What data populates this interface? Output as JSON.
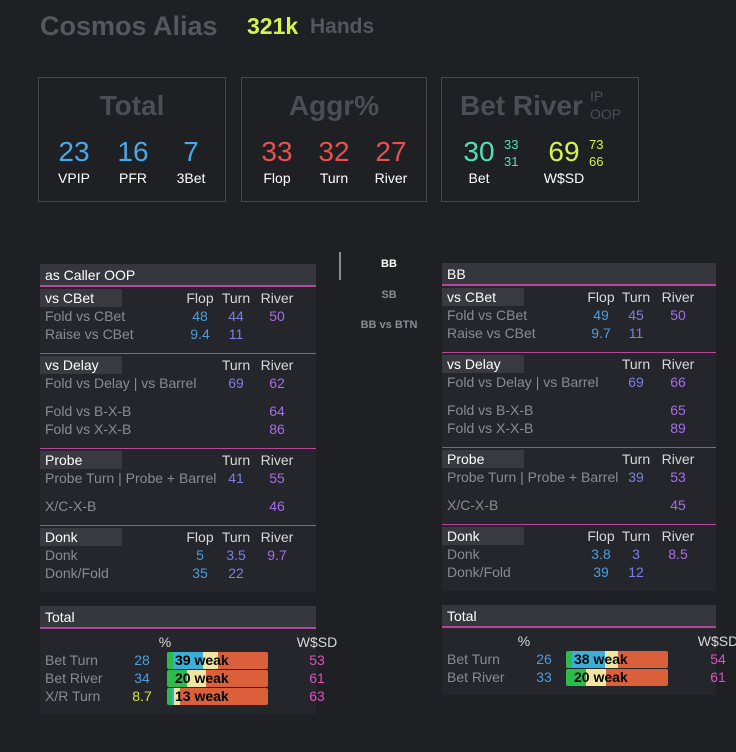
{
  "player": {
    "name": "Cosmos Alias",
    "hands_count": "321k",
    "hands_label": "Hands"
  },
  "colors": {
    "flop": "#4a9de0",
    "turn": "#7d7fe6",
    "river": "#a46ee6",
    "vpip": "#4aa8e8",
    "aggr": "#e8504e",
    "bet": "#4fe0b8",
    "wsd": "#d6f24e",
    "wsd_pink": "#e050c0",
    "pct_blue": "#4a9de0",
    "pct_yellow": "#d6e050",
    "accent_line": "#b5479a"
  },
  "stat_boxes": {
    "total": {
      "title": "Total",
      "stats": [
        {
          "value": "23",
          "label": "VPIP"
        },
        {
          "value": "16",
          "label": "PFR"
        },
        {
          "value": "7",
          "label": "3Bet"
        }
      ]
    },
    "aggr": {
      "title": "Aggr%",
      "stats": [
        {
          "value": "33",
          "label": "Flop"
        },
        {
          "value": "32",
          "label": "Turn"
        },
        {
          "value": "27",
          "label": "River"
        }
      ]
    },
    "bet_river": {
      "title": "Bet River",
      "ip_label": "IP",
      "oop_label": "OOP",
      "bet": {
        "value": "30",
        "ip": "33",
        "oop": "31",
        "label": "Bet"
      },
      "wsd": {
        "value": "69",
        "ip": "73",
        "oop": "66",
        "label": "W$SD"
      }
    }
  },
  "nav": {
    "items": [
      {
        "label": "BB",
        "active": true
      },
      {
        "label": "SB",
        "active": false
      },
      {
        "label": "BB vs BTN",
        "active": false
      }
    ]
  },
  "panels": [
    {
      "title": "as Caller OOP",
      "sections": [
        {
          "title": "vs CBet",
          "headers": {
            "flop": "Flop",
            "turn": "Turn",
            "river": "River"
          },
          "rows": [
            {
              "label": "Fold vs CBet",
              "flop": "48",
              "turn": "44",
              "river": "50"
            },
            {
              "label": "Raise vs CBet",
              "flop": "9.4",
              "turn": "11"
            }
          ]
        },
        {
          "title": "vs Delay",
          "headers": {
            "turn": "Turn",
            "river": "River"
          },
          "rows": [
            {
              "label": "Fold vs Delay | vs Barrel",
              "turn": "69",
              "river": "62"
            },
            {
              "label": "Fold vs B-X-B",
              "river": "64",
              "gap": true
            },
            {
              "label": "Fold vs X-X-B",
              "river": "86"
            }
          ]
        },
        {
          "title": "Probe",
          "headers": {
            "turn": "Turn",
            "river": "River"
          },
          "rows": [
            {
              "label": "Probe Turn | Probe + Barrel",
              "turn": "41",
              "river": "55"
            },
            {
              "label": "X/C-X-B",
              "river": "46",
              "gap": true
            }
          ]
        },
        {
          "title": "Donk",
          "headers": {
            "flop": "Flop",
            "turn": "Turn",
            "river": "River"
          },
          "rows": [
            {
              "label": "Donk",
              "flop": "5",
              "turn": "3.5",
              "river": "9.7"
            },
            {
              "label": "Donk/Fold",
              "flop": "35",
              "turn": "22"
            }
          ]
        }
      ],
      "total": {
        "title": "Total",
        "pct_header": "%",
        "wsd_header": "W$SD",
        "rows": [
          {
            "label": "Bet Turn",
            "pct": "28",
            "pct_color": "#4a9de0",
            "bar_text": "39 weak",
            "wsd": "53",
            "segments": [
              {
                "color": "#2dbb4e",
                "pct": 6
              },
              {
                "color": "#3ab0d8",
                "pct": 30
              },
              {
                "color": "#f0e6a0",
                "pct": 15
              },
              {
                "color": "#d9603a",
                "pct": 49
              }
            ]
          },
          {
            "label": "Bet River",
            "pct": "34",
            "pct_color": "#4a9de0",
            "bar_text": "20 weak",
            "wsd": "61",
            "segments": [
              {
                "color": "#2dbb4e",
                "pct": 20
              },
              {
                "color": "#f0e6a0",
                "pct": 19
              },
              {
                "color": "#d9603a",
                "pct": 61
              }
            ]
          },
          {
            "label": "X/R Turn",
            "pct": "8.7",
            "pct_color": "#d6e050",
            "bar_text": "13 weak",
            "wsd": "63",
            "segments": [
              {
                "color": "#2dbb4e",
                "pct": 5
              },
              {
                "color": "#3ab0d8",
                "pct": 2
              },
              {
                "color": "#f0e6a0",
                "pct": 6
              },
              {
                "color": "#d9603a",
                "pct": 87
              }
            ]
          }
        ]
      }
    },
    {
      "title": "BB",
      "sections": [
        {
          "title": "vs CBet",
          "headers": {
            "flop": "Flop",
            "turn": "Turn",
            "river": "River"
          },
          "rows": [
            {
              "label": "Fold vs CBet",
              "flop": "49",
              "turn": "45",
              "river": "50"
            },
            {
              "label": "Raise vs CBet",
              "flop": "9.7",
              "turn": "11"
            }
          ]
        },
        {
          "title": "vs Delay",
          "headers": {
            "turn": "Turn",
            "river": "River"
          },
          "rows": [
            {
              "label": "Fold vs Delay | vs Barrel",
              "turn": "69",
              "river": "66"
            },
            {
              "label": "Fold vs B-X-B",
              "river": "65",
              "gap": true
            },
            {
              "label": "Fold vs X-X-B",
              "river": "89"
            }
          ]
        },
        {
          "title": "Probe",
          "headers": {
            "turn": "Turn",
            "river": "River"
          },
          "rows": [
            {
              "label": "Probe Turn | Probe + Barrel",
              "turn": "39",
              "river": "53"
            },
            {
              "label": "X/C-X-B",
              "river": "45",
              "gap": true
            }
          ]
        },
        {
          "title": "Donk",
          "headers": {
            "flop": "Flop",
            "turn": "Turn",
            "river": "River"
          },
          "rows": [
            {
              "label": "Donk",
              "flop": "3.8",
              "turn": "3",
              "river": "8.5"
            },
            {
              "label": "Donk/Fold",
              "flop": "39",
              "turn": "12"
            }
          ]
        }
      ],
      "total": {
        "title": "Total",
        "pct_header": "%",
        "wsd_header": "W$SD",
        "rows": [
          {
            "label": "Bet Turn",
            "pct": "26",
            "pct_color": "#4a9de0",
            "bar_text": "38 weak",
            "wsd": "54",
            "segments": [
              {
                "color": "#2dbb4e",
                "pct": 6
              },
              {
                "color": "#3ab0d8",
                "pct": 32
              },
              {
                "color": "#f0e6a0",
                "pct": 13
              },
              {
                "color": "#d9603a",
                "pct": 49
              }
            ]
          },
          {
            "label": "Bet River",
            "pct": "33",
            "pct_color": "#4a9de0",
            "bar_text": "20 weak",
            "wsd": "61",
            "segments": [
              {
                "color": "#2dbb4e",
                "pct": 20
              },
              {
                "color": "#f0e6a0",
                "pct": 19
              },
              {
                "color": "#d9603a",
                "pct": 61
              }
            ]
          }
        ]
      }
    }
  ]
}
